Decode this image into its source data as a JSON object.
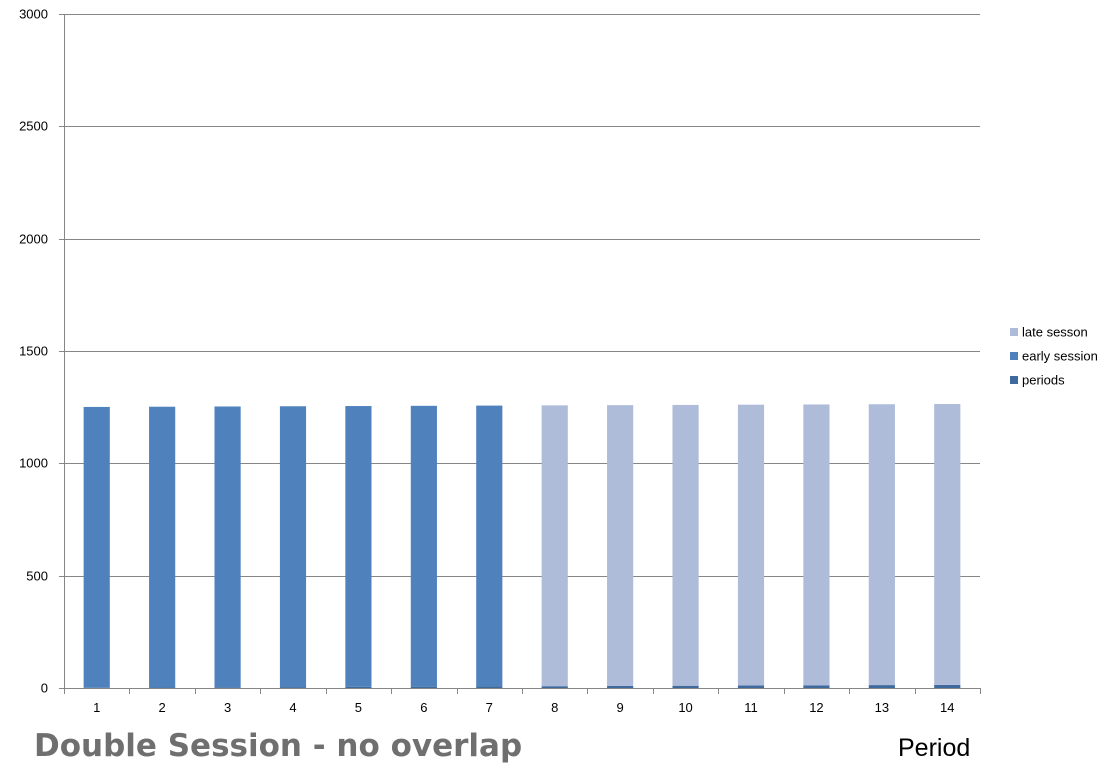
{
  "chart_data": {
    "type": "bar",
    "stacked": true,
    "title": "Double Session - no overlap",
    "xlabel": "Period",
    "ylabel": "",
    "ylim": [
      0,
      3000
    ],
    "yticks": [
      "0",
      "500",
      "1000",
      "1500",
      "2000",
      "2500",
      "3000"
    ],
    "categories": [
      "1",
      "2",
      "3",
      "4",
      "5",
      "6",
      "7",
      "8",
      "9",
      "10",
      "11",
      "12",
      "13",
      "14"
    ],
    "series": [
      {
        "name": "periods",
        "color": "#3f6a9e",
        "values": [
          1,
          2,
          3,
          4,
          5,
          6,
          7,
          8,
          9,
          10,
          11,
          12,
          13,
          14
        ]
      },
      {
        "name": "early session",
        "color": "#4f81bd",
        "values": [
          1250,
          1250,
          1250,
          1250,
          1250,
          1250,
          1250,
          0,
          0,
          0,
          0,
          0,
          0,
          0
        ]
      },
      {
        "name": "late sesson",
        "color": "#aebbd9",
        "values": [
          0,
          0,
          0,
          0,
          0,
          0,
          0,
          1250,
          1250,
          1250,
          1250,
          1250,
          1250,
          1250
        ]
      }
    ],
    "legend": {
      "position": "right",
      "order": [
        "late sesson",
        "early session",
        "periods"
      ]
    },
    "grid": true
  }
}
